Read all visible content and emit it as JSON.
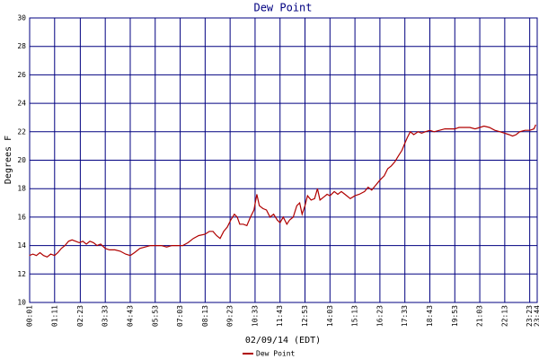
{
  "chart_data": {
    "type": "line",
    "title": "Dew Point",
    "xlabel": "02/09/14 (EDT)",
    "ylabel": "Degrees F",
    "x": [
      0,
      10,
      20,
      30,
      40,
      50,
      60,
      71,
      80,
      90,
      100,
      110,
      120,
      130,
      140,
      150,
      160,
      170,
      180,
      190,
      200,
      213,
      225,
      240,
      255,
      270,
      283,
      295,
      310,
      325,
      340,
      355,
      370,
      385,
      400,
      415,
      430,
      445,
      460,
      475,
      493,
      505,
      515,
      525,
      535,
      545,
      555,
      565,
      575,
      583,
      590,
      600,
      610,
      620,
      630,
      638,
      645,
      655,
      665,
      675,
      685,
      695,
      703,
      712,
      722,
      730,
      740,
      750,
      758,
      765,
      773,
      780,
      790,
      800,
      808,
      815,
      825,
      835,
      843,
      855,
      865,
      875,
      890,
      900,
      913,
      925,
      940,
      950,
      960,
      970,
      983,
      995,
      1005,
      1015,
      1025,
      1035,
      1045,
      1053,
      1060,
      1068,
      1078,
      1090,
      1100,
      1110,
      1123,
      1135,
      1150,
      1165,
      1180,
      1193,
      1205,
      1220,
      1235,
      1250,
      1263,
      1275,
      1290,
      1305,
      1320,
      1333,
      1345,
      1355,
      1365,
      1375,
      1390,
      1403,
      1415,
      1420
    ],
    "series": [
      {
        "name": "Dew Point",
        "color": "#b00000",
        "values": [
          13.3,
          13.4,
          13.3,
          13.5,
          13.3,
          13.2,
          13.4,
          13.3,
          13.5,
          13.8,
          14.0,
          14.3,
          14.4,
          14.3,
          14.2,
          14.3,
          14.1,
          14.3,
          14.2,
          14.0,
          14.1,
          13.8,
          13.7,
          13.7,
          13.6,
          13.4,
          13.3,
          13.5,
          13.8,
          13.9,
          14.0,
          14.0,
          14.0,
          13.9,
          14.0,
          14.0,
          14.0,
          14.2,
          14.5,
          14.7,
          14.8,
          15.0,
          15.0,
          14.7,
          14.5,
          15.0,
          15.3,
          15.8,
          16.2,
          16.0,
          15.5,
          15.5,
          15.4,
          16.0,
          16.5,
          17.6,
          16.8,
          16.6,
          16.5,
          16.0,
          16.2,
          15.8,
          15.6,
          16.0,
          15.5,
          15.8,
          16.0,
          16.8,
          17.0,
          16.2,
          16.8,
          17.5,
          17.2,
          17.3,
          18.0,
          17.2,
          17.4,
          17.6,
          17.5,
          17.8,
          17.6,
          17.8,
          17.5,
          17.3,
          17.5,
          17.6,
          17.8,
          18.1,
          17.9,
          18.2,
          18.6,
          18.9,
          19.4,
          19.6,
          19.9,
          20.3,
          20.7,
          21.2,
          21.6,
          22.0,
          21.8,
          22.0,
          21.9,
          22.0,
          22.1,
          22.0,
          22.1,
          22.2,
          22.2,
          22.2,
          22.3,
          22.3,
          22.3,
          22.2,
          22.3,
          22.4,
          22.3,
          22.1,
          22.0,
          21.9,
          21.8,
          21.7,
          21.8,
          22.0,
          22.1,
          22.1,
          22.2,
          22.5
        ]
      }
    ],
    "xlim": [
      1,
      1424
    ],
    "xticks": [
      {
        "value": 1,
        "label": "00:01"
      },
      {
        "value": 71,
        "label": "01:11"
      },
      {
        "value": 143,
        "label": "02:23"
      },
      {
        "value": 213,
        "label": "03:33"
      },
      {
        "value": 283,
        "label": "04:43"
      },
      {
        "value": 353,
        "label": "05:53"
      },
      {
        "value": 423,
        "label": "07:03"
      },
      {
        "value": 493,
        "label": "08:13"
      },
      {
        "value": 563,
        "label": "09:23"
      },
      {
        "value": 633,
        "label": "10:33"
      },
      {
        "value": 703,
        "label": "11:43"
      },
      {
        "value": 773,
        "label": "12:53"
      },
      {
        "value": 843,
        "label": "14:03"
      },
      {
        "value": 913,
        "label": "15:13"
      },
      {
        "value": 983,
        "label": "16:23"
      },
      {
        "value": 1053,
        "label": "17:33"
      },
      {
        "value": 1123,
        "label": "18:43"
      },
      {
        "value": 1193,
        "label": "19:53"
      },
      {
        "value": 1263,
        "label": "21:03"
      },
      {
        "value": 1333,
        "label": "22:13"
      },
      {
        "value": 1403,
        "label": "23:23"
      },
      {
        "value": 1424,
        "label": "23:44"
      }
    ],
    "ylim": [
      10,
      30
    ],
    "yticks": [
      10,
      12,
      14,
      16,
      18,
      20,
      22,
      24,
      26,
      28,
      30
    ],
    "grid": true,
    "grid_color": "#000080"
  }
}
